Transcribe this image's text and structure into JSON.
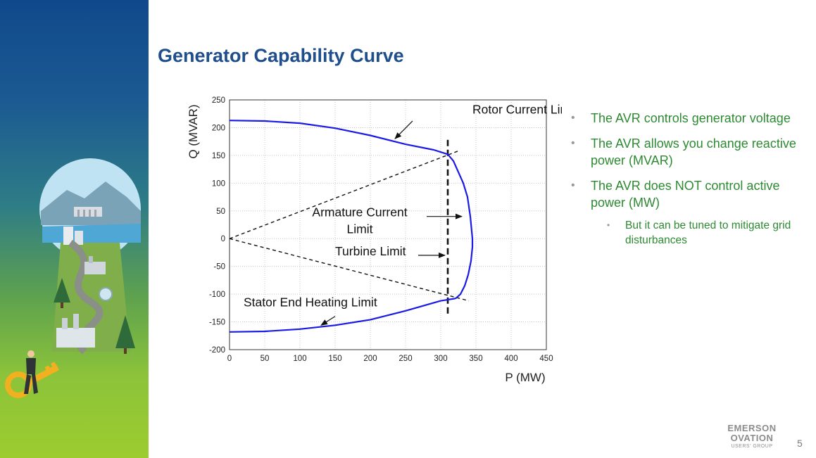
{
  "slide": {
    "title": "Generator Capability Curve",
    "page_number": "5"
  },
  "bullets": [
    {
      "text": "The AVR controls generator voltage",
      "level": 1
    },
    {
      "text": "The AVR allows you change reactive power (MVAR)",
      "level": 1
    },
    {
      "text": "The AVR does NOT control active power (MW)",
      "level": 1
    },
    {
      "text": "But it can be tuned to mitigate grid disturbances",
      "level": 2
    }
  ],
  "logo": {
    "line1": "EMERSON",
    "line2": "OVATION",
    "line3": "USERS' GROUP"
  },
  "colors": {
    "title": "#1f4e8c",
    "bullet_text": "#2d8a32",
    "curve": "#1a1ae6",
    "sidebar_top": "#10498b",
    "sidebar_bottom": "#9ccc2e"
  },
  "chart_data": {
    "type": "line",
    "xlabel": "P (MW)",
    "ylabel": "Q (MVAR)",
    "xlim": [
      0,
      450
    ],
    "ylim": [
      -200,
      250
    ],
    "xticks": [
      0,
      50,
      100,
      150,
      200,
      250,
      300,
      350,
      400,
      450
    ],
    "yticks": [
      250,
      200,
      150,
      100,
      50,
      0,
      -50,
      -100,
      -150,
      -200
    ],
    "grid": true,
    "curve": {
      "x": [
        0,
        50,
        100,
        150,
        200,
        250,
        290,
        310,
        318,
        325,
        332,
        338,
        342,
        345,
        345,
        343,
        339,
        334,
        328,
        322,
        320,
        300,
        250,
        200,
        150,
        100,
        50,
        0
      ],
      "y": [
        213,
        212,
        208,
        199,
        186,
        170,
        160,
        152,
        140,
        120,
        100,
        75,
        40,
        0,
        -15,
        -40,
        -65,
        -85,
        -100,
        -107,
        -108,
        -112,
        -130,
        -146,
        -156,
        -163,
        -167,
        -168
      ]
    },
    "armature_lines": {
      "upper": {
        "x": [
          0,
          325
        ],
        "y": [
          0,
          158
        ]
      },
      "lower": {
        "x": [
          0,
          340
        ],
        "y": [
          0,
          -112
        ]
      }
    },
    "turbine_limit": {
      "x": 310,
      "y": [
        -135,
        180
      ]
    },
    "annotations": [
      {
        "label": "Rotor Current Limit",
        "text_at": [
          345,
          225
        ],
        "arrow_from": [
          260,
          212
        ],
        "arrow_to": [
          235,
          180
        ]
      },
      {
        "label": "Armature Current",
        "text_at": [
          185,
          40
        ],
        "arrow_from": [
          280,
          40
        ],
        "arrow_to": [
          330,
          40
        ]
      },
      {
        "label": "Limit",
        "text_at": [
          185,
          10
        ]
      },
      {
        "label": "Turbine Limit",
        "text_at": [
          150,
          -30
        ],
        "arrow_from": [
          268,
          -30
        ],
        "arrow_to": [
          306,
          -30
        ]
      },
      {
        "label": "Stator End Heating Limit",
        "text_at": [
          20,
          -122
        ],
        "arrow_from": [
          150,
          -140
        ],
        "arrow_to": [
          130,
          -156
        ]
      }
    ]
  }
}
